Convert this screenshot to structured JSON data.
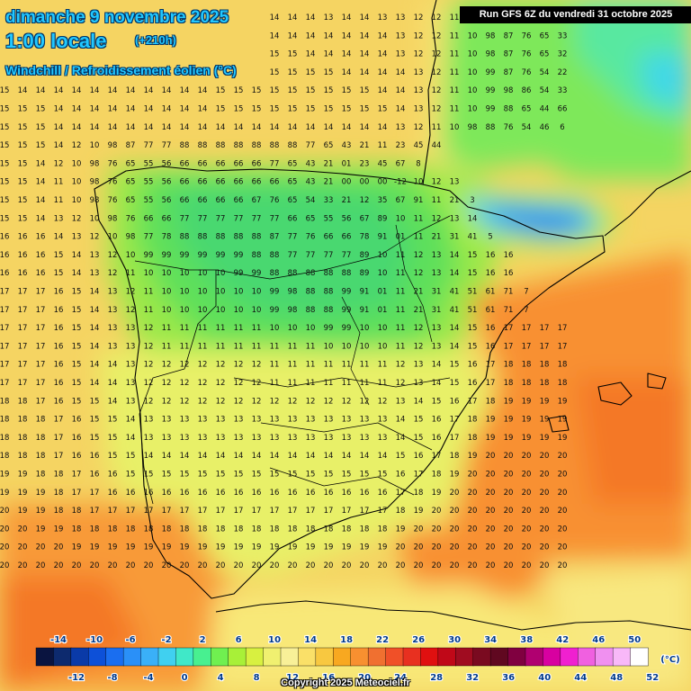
{
  "header": {
    "date": "dimanche 9 novembre 2025",
    "time": "1:00 locale",
    "offset": "(+210h)",
    "variable": "Windchill / Refroidissement éolien (°C)"
  },
  "run_info": "Run GFS 6Z du vendredi 31 octobre 2025",
  "copyright": "Copyright 2025 Meteociel.fr",
  "legend": {
    "unit": "(°C)",
    "top_labels": [
      "-14",
      "-10",
      "-6",
      "-2",
      "2",
      "6",
      "10",
      "14",
      "18",
      "22",
      "26",
      "30",
      "34",
      "38",
      "42",
      "46",
      "50"
    ],
    "bottom_labels": [
      "-12",
      "-8",
      "-4",
      "0",
      "4",
      "8",
      "12",
      "16",
      "20",
      "24",
      "28",
      "32",
      "36",
      "40",
      "44",
      "48",
      "52"
    ],
    "colors": [
      "#0a1440",
      "#0d2a6e",
      "#0a3aa8",
      "#0d50d8",
      "#1a6ef0",
      "#2a90f8",
      "#3ab0f8",
      "#40d0f0",
      "#40e8c8",
      "#48f090",
      "#70f050",
      "#a8f038",
      "#d8f040",
      "#f0f070",
      "#f8f098",
      "#fae068",
      "#f8c840",
      "#f8a820",
      "#f89030",
      "#f07030",
      "#f05028",
      "#e83020",
      "#e01010",
      "#c00818",
      "#a00c20",
      "#7a0a20",
      "#600820",
      "#800040",
      "#b00070",
      "#d800a0",
      "#f020d0",
      "#f060e0",
      "#f090f0",
      "#f8b8f8",
      "#ffffff"
    ]
  },
  "field": {
    "rows": [
      "1414141414141414141414141414141414141314141313121211109887765432",
      "1414141414141414141414141414141414141414141413121211109887766533",
      "1414141414141414141414141515151515141414141413121211109887766532",
      "1414141414141414141414141515151515151514141414131211109987765422",
      "1514141414141414141414141515151515151515151414131211109998865433",
      "1515151414141414141414141515151515151515151514131211109988654466",
      "151515141414141414141414141414141414141414141312111098887654466",
      "15151514121098877777888888888888887765432111234544",
      "15151412109876655556666666666677654321012345678",
      "15151411109876655556666666666666654321000000-12101213",
      "15151411109876655556666666666776655433211235679111213",
      "151514131210987666667777777777776665555667891011121314",
      "1616161413121098777888888888888777766666789101112131415",
      "1616161514131210999999999999888877777777891011121314151616",
      "1616161514131211101010101099998888888888891011121314151616",
      "17171716151413121110101010101099988888999101112131415161717",
      "17171716151413121110101010101099988888999101112131415161717",
      "1717171615141313121111111111111010109999101011121314151617171717",
      "1717171615141313121111111111111111111010101011121314151617171717",
      "1717171615141413121212121212121111111111111112131415161718181818",
      "1717171615141413121212121212121111111111111112131415161718181818",
      "1818171615151413121212121212121212121212121213141516171819191919",
      "1818181716151514131313131313131313131313131314151617181919191919",
      "1818181716151514131313131313131313131313131314151617181919191919",
      "1818181716161515141414141414141414141414141415161718192020202020",
      "1919181817161615151515151515151515151515151516171819202020202020",
      "1919191817171616161616161616161616161616161617181920202020202020",
      "2019191818171717171717171717171717171717171718192020202020202020",
      "2020191918181818181818181818181818181818181819202020202020202020",
      "2020202019191919191919191919191919191919191920202020202020202020",
      "2020202020202020202020202020202020202020202020202020202020202020"
    ]
  }
}
